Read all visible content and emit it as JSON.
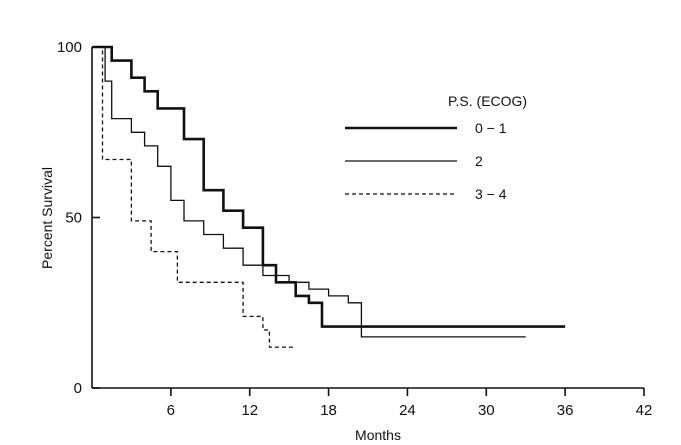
{
  "chart_data": {
    "type": "line",
    "title": "",
    "xlabel": "Months",
    "ylabel": "Percent Survival",
    "xlim": [
      0,
      42
    ],
    "ylim": [
      0,
      100
    ],
    "x_ticks": [
      6,
      12,
      18,
      24,
      30,
      36,
      42
    ],
    "x_tick_labels": [
      "6",
      "12",
      "18",
      "24",
      "30",
      "36",
      "42"
    ],
    "y_ticks": [
      0,
      50,
      100
    ],
    "y_tick_labels": [
      "0",
      "50",
      "100"
    ],
    "grid": false,
    "legend_title": "P.S. (ECOG)",
    "legend_position": "right",
    "series": [
      {
        "name": "0 − 1",
        "style": "thick-solid",
        "color": "#111111",
        "points": [
          [
            0,
            100
          ],
          [
            1.5,
            100
          ],
          [
            1.5,
            96
          ],
          [
            3,
            96
          ],
          [
            3,
            91
          ],
          [
            4,
            91
          ],
          [
            4,
            87
          ],
          [
            5,
            87
          ],
          [
            5,
            82
          ],
          [
            7,
            82
          ],
          [
            7,
            73
          ],
          [
            8.5,
            73
          ],
          [
            8.5,
            58
          ],
          [
            10,
            58
          ],
          [
            10,
            52
          ],
          [
            11.5,
            52
          ],
          [
            11.5,
            47
          ],
          [
            13,
            47
          ],
          [
            13,
            36
          ],
          [
            14,
            36
          ],
          [
            14,
            31
          ],
          [
            15.5,
            31
          ],
          [
            15.5,
            27
          ],
          [
            16.5,
            27
          ],
          [
            16.5,
            25
          ],
          [
            17.5,
            25
          ],
          [
            17.5,
            18
          ],
          [
            36,
            18
          ]
        ]
      },
      {
        "name": "2",
        "style": "thin-solid",
        "color": "#111111",
        "points": [
          [
            0,
            100
          ],
          [
            1,
            100
          ],
          [
            1,
            90
          ],
          [
            1.5,
            90
          ],
          [
            1.5,
            79
          ],
          [
            3,
            79
          ],
          [
            3,
            75
          ],
          [
            4,
            75
          ],
          [
            4,
            71
          ],
          [
            5,
            71
          ],
          [
            5,
            65
          ],
          [
            6,
            65
          ],
          [
            6,
            55
          ],
          [
            7,
            55
          ],
          [
            7,
            49
          ],
          [
            8.5,
            49
          ],
          [
            8.5,
            45
          ],
          [
            10,
            45
          ],
          [
            10,
            41
          ],
          [
            11.5,
            41
          ],
          [
            11.5,
            36
          ],
          [
            13,
            36
          ],
          [
            13,
            33
          ],
          [
            15,
            33
          ],
          [
            15,
            31
          ],
          [
            16.5,
            31
          ],
          [
            16.5,
            29
          ],
          [
            18,
            29
          ],
          [
            18,
            27
          ],
          [
            19.5,
            27
          ],
          [
            19.5,
            25
          ],
          [
            20.5,
            25
          ],
          [
            20.5,
            15
          ],
          [
            33,
            15
          ]
        ]
      },
      {
        "name": "3 − 4",
        "style": "dashed",
        "color": "#111111",
        "points": [
          [
            0,
            100
          ],
          [
            0.8,
            100
          ],
          [
            0.8,
            67
          ],
          [
            3,
            67
          ],
          [
            3,
            49
          ],
          [
            4.5,
            49
          ],
          [
            4.5,
            40
          ],
          [
            6.5,
            40
          ],
          [
            6.5,
            31
          ],
          [
            11.5,
            31
          ],
          [
            11.5,
            21
          ],
          [
            13,
            21
          ],
          [
            13,
            17
          ],
          [
            13.5,
            17
          ],
          [
            13.5,
            12
          ],
          [
            15.5,
            12
          ]
        ]
      }
    ]
  }
}
